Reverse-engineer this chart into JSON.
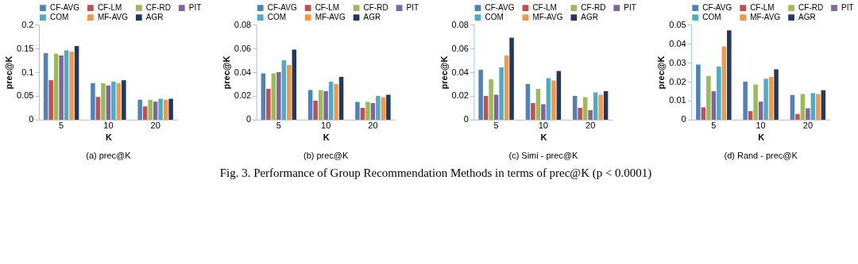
{
  "chart_data": [
    {
      "type": "bar",
      "title": "(a) prec@K",
      "xlabel": "K",
      "ylabel": "prec@K",
      "categories": [
        "5",
        "10",
        "20"
      ],
      "ylim": [
        0,
        0.2
      ],
      "yticks": [
        0,
        0.05,
        0.1,
        0.15,
        0.2
      ],
      "grid": false,
      "legend": "top",
      "annotations": [
        "Fig. 3.  Performance of Group Recommendation Methods in terms of prec@K (p < 0.0001)"
      ],
      "series": [
        {
          "name": "CF-AVG",
          "color": "#4f81bd",
          "values": [
            0.14,
            0.077,
            0.042
          ]
        },
        {
          "name": "CF-LM",
          "color": "#c0504d",
          "values": [
            0.083,
            0.048,
            0.028
          ]
        },
        {
          "name": "CF-RD",
          "color": "#9bbb59",
          "values": [
            0.139,
            0.077,
            0.042
          ]
        },
        {
          "name": "PIT",
          "color": "#8064a2",
          "values": [
            0.135,
            0.072,
            0.038
          ]
        },
        {
          "name": "COM",
          "color": "#4bacc6",
          "values": [
            0.146,
            0.08,
            0.044
          ]
        },
        {
          "name": "MF-AVG",
          "color": "#f79646",
          "values": [
            0.143,
            0.077,
            0.042
          ]
        },
        {
          "name": "AGR",
          "color": "#1f3864",
          "values": [
            0.155,
            0.083,
            0.044
          ]
        }
      ]
    },
    {
      "type": "bar",
      "title": "(b) prec@K",
      "xlabel": "K",
      "ylabel": "prec@K",
      "categories": [
        "5",
        "10",
        "20"
      ],
      "ylim": [
        0,
        0.08
      ],
      "yticks": [
        0,
        0.02,
        0.04,
        0.06,
        0.08
      ],
      "grid": false,
      "legend": "top",
      "series": [
        {
          "name": "CF-AVG",
          "color": "#4f81bd",
          "values": [
            0.039,
            0.025,
            0.015
          ]
        },
        {
          "name": "CF-LM",
          "color": "#c0504d",
          "values": [
            0.026,
            0.016,
            0.01
          ]
        },
        {
          "name": "CF-RD",
          "color": "#9bbb59",
          "values": [
            0.039,
            0.025,
            0.015
          ]
        },
        {
          "name": "PIT",
          "color": "#8064a2",
          "values": [
            0.04,
            0.024,
            0.014
          ]
        },
        {
          "name": "COM",
          "color": "#4bacc6",
          "values": [
            0.05,
            0.032,
            0.02
          ]
        },
        {
          "name": "MF-AVG",
          "color": "#f79646",
          "values": [
            0.046,
            0.03,
            0.019
          ]
        },
        {
          "name": "AGR",
          "color": "#1f3864",
          "values": [
            0.059,
            0.036,
            0.021
          ]
        }
      ]
    },
    {
      "type": "bar",
      "title": "(c) Simi - prec@K",
      "xlabel": "K",
      "ylabel": "prec@K",
      "categories": [
        "5",
        "10",
        "20"
      ],
      "ylim": [
        0,
        0.08
      ],
      "yticks": [
        0,
        0.02,
        0.04,
        0.06,
        0.08
      ],
      "grid": false,
      "legend": "top",
      "series": [
        {
          "name": "CF-AVG",
          "color": "#4f81bd",
          "values": [
            0.042,
            0.03,
            0.02
          ]
        },
        {
          "name": "CF-LM",
          "color": "#c0504d",
          "values": [
            0.02,
            0.014,
            0.01
          ]
        },
        {
          "name": "CF-RD",
          "color": "#9bbb59",
          "values": [
            0.034,
            0.026,
            0.019
          ]
        },
        {
          "name": "PIT",
          "color": "#8064a2",
          "values": [
            0.021,
            0.013,
            0.008
          ]
        },
        {
          "name": "COM",
          "color": "#4bacc6",
          "values": [
            0.044,
            0.035,
            0.023
          ]
        },
        {
          "name": "MF-AVG",
          "color": "#f79646",
          "values": [
            0.054,
            0.033,
            0.021
          ]
        },
        {
          "name": "AGR",
          "color": "#1f3864",
          "values": [
            0.069,
            0.041,
            0.024
          ]
        }
      ]
    },
    {
      "type": "bar",
      "title": "(d) Rand - prec@K",
      "xlabel": "K",
      "ylabel": "prec@K",
      "categories": [
        "5",
        "10",
        "20"
      ],
      "ylim": [
        0,
        0.05
      ],
      "yticks": [
        0,
        0.01,
        0.02,
        0.03,
        0.04,
        0.05
      ],
      "grid": false,
      "legend": "top",
      "series": [
        {
          "name": "CF-AVG",
          "color": "#4f81bd",
          "values": [
            0.029,
            0.02,
            0.013
          ]
        },
        {
          "name": "CF-LM",
          "color": "#c0504d",
          "values": [
            0.0065,
            0.0045,
            0.003
          ]
        },
        {
          "name": "CF-RD",
          "color": "#9bbb59",
          "values": [
            0.023,
            0.0185,
            0.0135
          ]
        },
        {
          "name": "PIT",
          "color": "#8064a2",
          "values": [
            0.015,
            0.0095,
            0.006
          ]
        },
        {
          "name": "COM",
          "color": "#4bacc6",
          "values": [
            0.028,
            0.0215,
            0.014
          ]
        },
        {
          "name": "MF-AVG",
          "color": "#f79646",
          "values": [
            0.0385,
            0.0225,
            0.0135
          ]
        },
        {
          "name": "AGR",
          "color": "#1f3864",
          "values": [
            0.047,
            0.0265,
            0.0155
          ]
        }
      ]
    }
  ]
}
